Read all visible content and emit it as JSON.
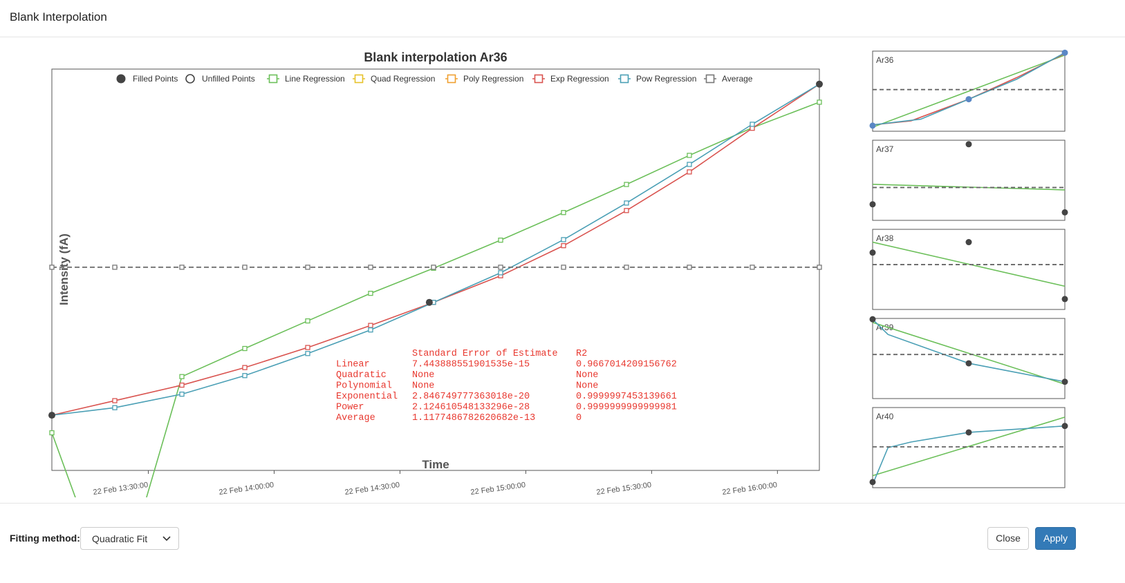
{
  "dialog": {
    "title": "Blank Interpolation"
  },
  "main_chart": {
    "title": "Blank interpolation Ar36",
    "ylabel": "Intensity (fA)",
    "xlabel": "Time",
    "legend": [
      {
        "label": "Filled Points",
        "kind": "filled",
        "color": "#444444"
      },
      {
        "label": "Unfilled Points",
        "kind": "unfilled",
        "color": "#444444"
      },
      {
        "label": "Line Regression",
        "kind": "square",
        "color": "#6bbf59"
      },
      {
        "label": "Quad Regression",
        "kind": "square",
        "color": "#e6c229"
      },
      {
        "label": "Poly Regression",
        "kind": "square",
        "color": "#f0a030"
      },
      {
        "label": "Exp Regression",
        "kind": "square",
        "color": "#d9534f"
      },
      {
        "label": "Pow Regression",
        "kind": "square",
        "color": "#4a9fb5"
      },
      {
        "label": "Average",
        "kind": "square-dash",
        "color": "#777777"
      }
    ],
    "stats": {
      "header": [
        "",
        "Standard Error of Estimate",
        "R2"
      ],
      "rows": [
        [
          "Linear",
          "7.443888551901535e-15",
          "0.9667014209156762"
        ],
        [
          "Quadratic",
          "None",
          "None"
        ],
        [
          "Polynomial",
          "None",
          "None"
        ],
        [
          "Exponential",
          "2.846749777363018e-20",
          "0.9999997453139661"
        ],
        [
          "Power",
          "2.124610548133296e-28",
          "0.9999999999999981"
        ],
        [
          "Average",
          "1.1177486782620682e-13",
          "0"
        ]
      ]
    }
  },
  "chart_data": {
    "type": "line",
    "title": "Blank interpolation Ar36",
    "xlabel": "Time",
    "ylabel": "Intensity (fA)",
    "ylim": [
      5.6e-07,
      6.4e-07
    ],
    "xlim": [
      "22 Feb 13:07",
      "22 Feb 16:10"
    ],
    "yticks": [
      "0.0000056",
      "0.0000057",
      "0.0000058",
      "0.0000059",
      "0.000006",
      "0.0000061",
      "0.0000062",
      "0.0000063",
      "0.0000064"
    ],
    "xticks": [
      "22 Feb 13:30:00",
      "22 Feb 14:00:00",
      "22 Feb 14:30:00",
      "22 Feb 15:00:00",
      "22 Feb 15:30:00",
      "22 Feb 16:00:00"
    ],
    "legend_position": "top",
    "grid": false,
    "x_minutes_labels": [
      "13:07",
      "13:22",
      "13:38",
      "13:53",
      "14:08",
      "14:23",
      "14:38",
      "14:54",
      "15:09",
      "15:24",
      "15:39",
      "15:54",
      "16:10"
    ],
    "points_filled": [
      {
        "x": "22 Feb 13:07",
        "y": 5.71e-07
      },
      {
        "x": "22 Feb 14:37",
        "y": 5.935e-07
      },
      {
        "x": "22 Feb 16:10",
        "y": 6.37e-07
      }
    ],
    "series": [
      {
        "name": "Line Regression",
        "color": "#6bbf59",
        "values": [
          5.675e-07,
          5.33e-07,
          5.787e-07,
          5.843e-07,
          5.898e-07,
          5.953e-07,
          6.003e-07,
          6.059e-07,
          6.114e-07,
          6.17e-07,
          6.228e-07,
          6.283e-07,
          6.334e-07
        ]
      },
      {
        "name": "Exp Regression",
        "color": "#d9534f",
        "values": [
          5.71e-07,
          5.739e-07,
          5.77e-07,
          5.805e-07,
          5.845e-07,
          5.889e-07,
          5.935e-07,
          5.988e-07,
          6.048e-07,
          6.118e-07,
          6.195e-07,
          6.282e-07,
          6.37e-07
        ]
      },
      {
        "name": "Pow Regression",
        "color": "#4a9fb5",
        "values": [
          5.71e-07,
          5.725e-07,
          5.752e-07,
          5.789e-07,
          5.833e-07,
          5.88e-07,
          5.935e-07,
          5.994e-07,
          6.06e-07,
          6.133e-07,
          6.21e-07,
          6.29e-07,
          6.37e-07
        ]
      },
      {
        "name": "Average",
        "color": "#777777",
        "dashed": true,
        "values": [
          6.005e-07,
          6.005e-07,
          6.005e-07,
          6.005e-07,
          6.005e-07,
          6.005e-07,
          6.005e-07,
          6.005e-07,
          6.005e-07,
          6.005e-07,
          6.005e-07,
          6.005e-07,
          6.005e-07
        ]
      }
    ]
  },
  "thumbnails": [
    {
      "label": "Ar36"
    },
    {
      "label": "Ar37"
    },
    {
      "label": "Ar38"
    },
    {
      "label": "Ar39"
    },
    {
      "label": "Ar40"
    }
  ],
  "footer": {
    "fitting_label": "Fitting method:",
    "fitting_value": "Quadratic Fit",
    "close_label": "Close",
    "apply_label": "Apply"
  }
}
